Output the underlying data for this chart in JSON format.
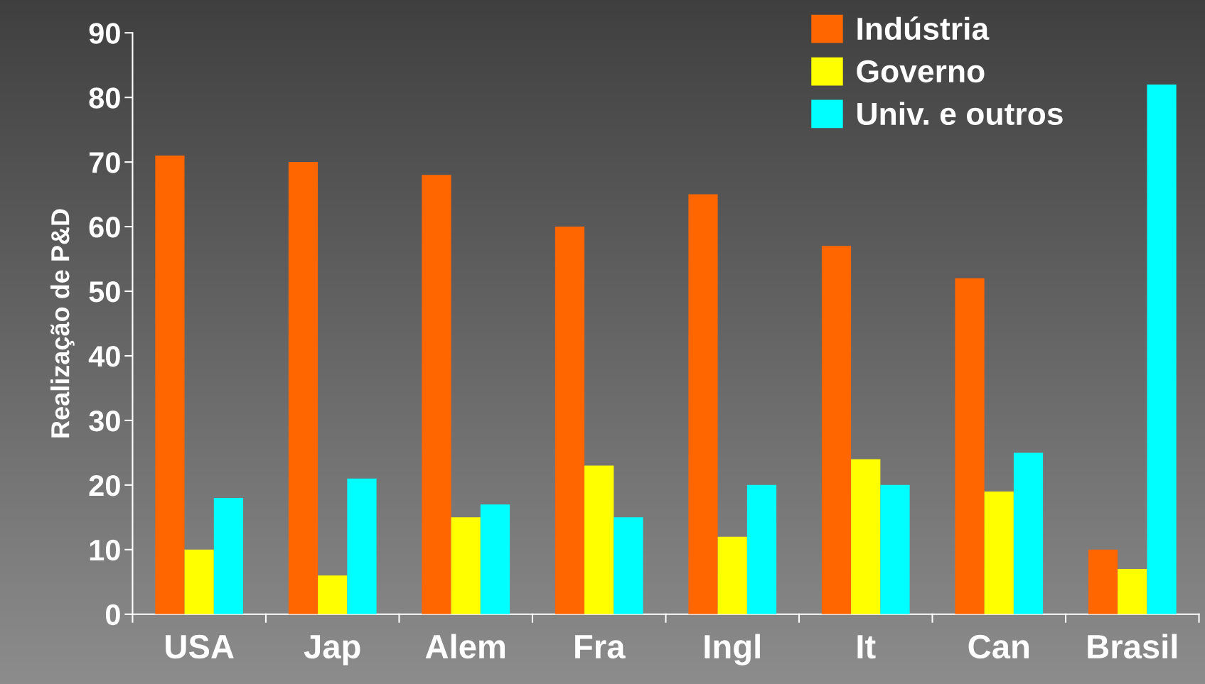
{
  "chart_data": {
    "type": "bar",
    "ylabel": "Realização de P&D",
    "categories": [
      "USA",
      "Jap",
      "Alem",
      "Fra",
      "Ingl",
      "It",
      "Can",
      "Brasil"
    ],
    "series": [
      {
        "name": "Indústria",
        "color": "#ff6600",
        "values": [
          71,
          70,
          68,
          60,
          65,
          57,
          52,
          10
        ]
      },
      {
        "name": "Governo",
        "color": "#ffff00",
        "values": [
          10,
          6,
          15,
          23,
          12,
          24,
          19,
          7
        ]
      },
      {
        "name": "Univ. e outros",
        "color": "#00ffff",
        "values": [
          18,
          21,
          17,
          15,
          20,
          20,
          25,
          82
        ]
      }
    ],
    "ylim": [
      0,
      90
    ],
    "yticks": [
      0,
      10,
      20,
      30,
      40,
      50,
      60,
      70,
      80,
      90
    ],
    "grid": false,
    "legend": "top right"
  }
}
